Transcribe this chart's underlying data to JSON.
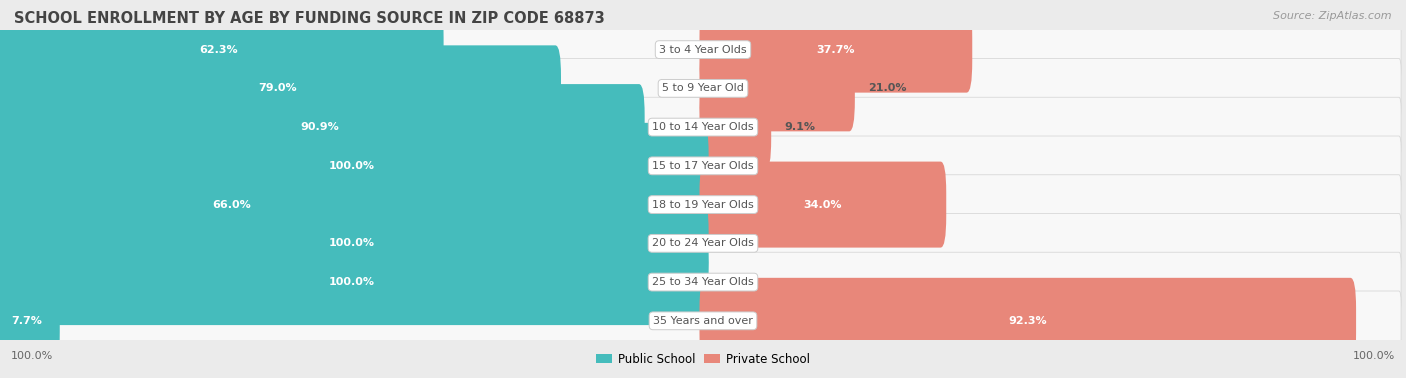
{
  "title": "SCHOOL ENROLLMENT BY AGE BY FUNDING SOURCE IN ZIP CODE 68873",
  "source": "Source: ZipAtlas.com",
  "categories": [
    "3 to 4 Year Olds",
    "5 to 9 Year Old",
    "10 to 14 Year Olds",
    "15 to 17 Year Olds",
    "18 to 19 Year Olds",
    "20 to 24 Year Olds",
    "25 to 34 Year Olds",
    "35 Years and over"
  ],
  "public": [
    62.3,
    79.0,
    90.9,
    100.0,
    66.0,
    100.0,
    100.0,
    7.7
  ],
  "private": [
    37.7,
    21.0,
    9.1,
    0.0,
    34.0,
    0.0,
    0.0,
    92.3
  ],
  "public_color": "#45BCBC",
  "private_color": "#E8877A",
  "bg_color": "#EBEBEB",
  "row_bg_color": "#F8F8F8",
  "row_border_color": "#D8D8D8",
  "title_color": "#444444",
  "source_color": "#999999",
  "cat_label_color": "#555555",
  "pct_label_color_inside": "#FFFFFF",
  "pct_label_color_outside": "#555555",
  "title_fontsize": 10.5,
  "source_fontsize": 8,
  "bar_label_fontsize": 8,
  "cat_label_fontsize": 8,
  "axis_label_fontsize": 8,
  "bar_height": 0.62,
  "legend_public": "Public School",
  "legend_private": "Private School",
  "x_left_label": "100.0%",
  "x_right_label": "100.0%"
}
